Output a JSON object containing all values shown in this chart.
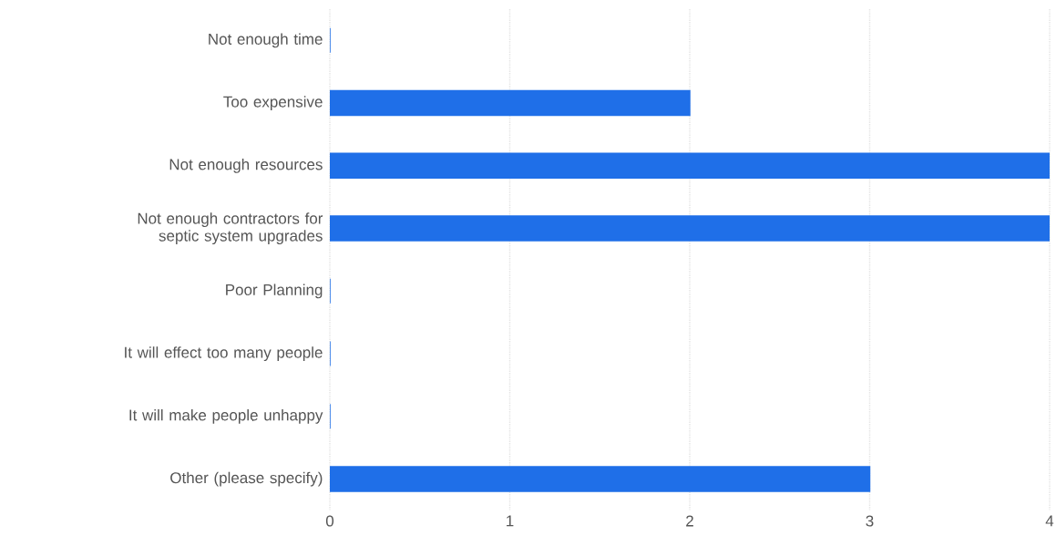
{
  "chart_data": {
    "type": "bar",
    "orientation": "horizontal",
    "categories": [
      "Not enough time",
      "Too expensive",
      "Not enough resources",
      "Not enough contractors for septic system upgrades",
      "Poor Planning",
      "It will effect too many people",
      "It will make people unhappy",
      "Other (please specify)"
    ],
    "values": [
      0,
      2,
      4,
      4,
      0,
      0,
      0,
      3
    ],
    "color": "#1f6fe8",
    "xlim": [
      0,
      4
    ],
    "xticks": [
      0,
      1,
      2,
      3,
      4
    ],
    "grid": "x"
  }
}
